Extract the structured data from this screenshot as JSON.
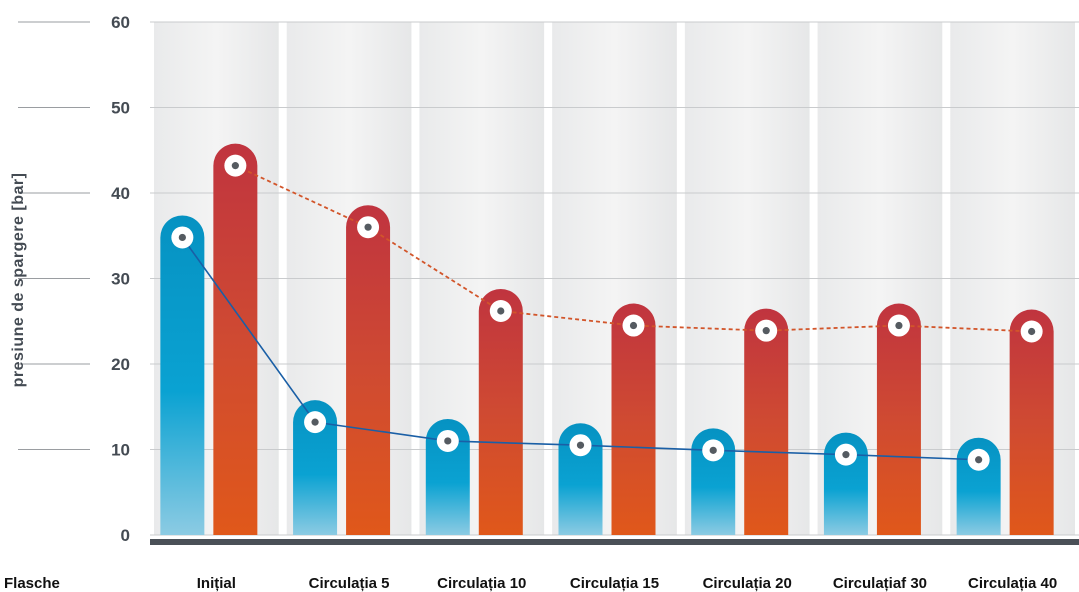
{
  "chart_data": {
    "type": "bar",
    "title": "",
    "xlabel": "Flasche",
    "ylabel": "presiune de spargere [bar]",
    "ylim": [
      0,
      60
    ],
    "yticks": [
      0,
      10,
      20,
      30,
      40,
      50,
      60
    ],
    "categories": [
      "Inițial",
      "Circulația 5",
      "Circulația 10",
      "Circulația 15",
      "Circulația 20",
      "Circulațiaf 30",
      "Circulația 40"
    ],
    "series": [
      {
        "values": [
          34.8,
          13.2,
          11.0,
          10.5,
          9.9,
          9.4,
          8.8
        ],
        "color": "#0b9cc9",
        "line_style": "solid",
        "line_color": "#1a5fa6"
      },
      {
        "values": [
          43.2,
          36.0,
          26.2,
          24.5,
          23.9,
          24.5,
          23.8
        ],
        "color": "#c93a3e",
        "line_style": "dashed",
        "line_color": "#d2552a"
      }
    ],
    "grid": true,
    "legend": "none"
  }
}
